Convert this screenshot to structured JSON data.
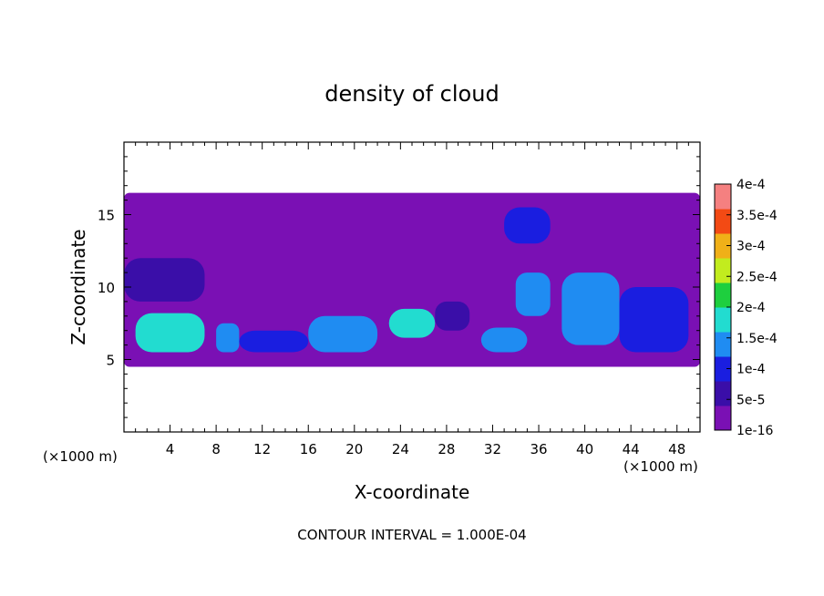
{
  "chart_data": {
    "type": "heatmap",
    "title": "density of cloud",
    "xlabel": "X-coordinate",
    "ylabel": "Z-coordinate",
    "x_unit_left": "(×1000 m)",
    "x_unit_right": "(×1000 m)",
    "footer": "CONTOUR INTERVAL = 1.000E-04",
    "xlim": [
      0,
      50
    ],
    "ylim": [
      0,
      20
    ],
    "x_ticks": [
      4,
      8,
      12,
      16,
      20,
      24,
      28,
      32,
      36,
      40,
      44,
      48
    ],
    "y_ticks": [
      5,
      10,
      15
    ],
    "colorbar": {
      "labels": [
        "1e-16",
        "5e-5",
        "1e-4",
        "1.5e-4",
        "2e-4",
        "2.5e-4",
        "3e-4",
        "3.5e-4",
        "4e-4"
      ],
      "values": [
        0,
        5e-05,
        0.0001,
        0.00015,
        0.0002,
        0.00025,
        0.0003,
        0.00035,
        0.0004
      ],
      "colors": [
        "#7a10b4",
        "#3a0ea8",
        "#1a1ee0",
        "#1f8cf2",
        "#22dcd0",
        "#1ecf3e",
        "#c2ec1e",
        "#f0b018",
        "#f34a14",
        "#f58080"
      ]
    },
    "contour_interval": 0.0001,
    "cloud_regions": [
      {
        "x": [
          0,
          50
        ],
        "z": [
          4.5,
          16.5
        ],
        "level": 0
      },
      {
        "x": [
          0,
          7
        ],
        "z": [
          9,
          12
        ],
        "level": 1
      },
      {
        "x": [
          1,
          7
        ],
        "z": [
          5.5,
          8.2
        ],
        "level": 4
      },
      {
        "x": [
          8,
          10
        ],
        "z": [
          5.5,
          7.5
        ],
        "level": 3
      },
      {
        "x": [
          10,
          16
        ],
        "z": [
          5.5,
          7
        ],
        "level": 2
      },
      {
        "x": [
          16,
          22
        ],
        "z": [
          5.5,
          8
        ],
        "level": 3
      },
      {
        "x": [
          23,
          27
        ],
        "z": [
          6.5,
          8.5
        ],
        "level": 4
      },
      {
        "x": [
          27,
          30
        ],
        "z": [
          7,
          9
        ],
        "level": 1
      },
      {
        "x": [
          31,
          35
        ],
        "z": [
          5.5,
          7.2
        ],
        "level": 3
      },
      {
        "x": [
          33,
          37
        ],
        "z": [
          13,
          15.5
        ],
        "level": 2
      },
      {
        "x": [
          34,
          37
        ],
        "z": [
          8,
          11
        ],
        "level": 3
      },
      {
        "x": [
          38,
          43
        ],
        "z": [
          6,
          11
        ],
        "level": 3
      },
      {
        "x": [
          43,
          49
        ],
        "z": [
          5.5,
          10
        ],
        "level": 2
      }
    ]
  }
}
